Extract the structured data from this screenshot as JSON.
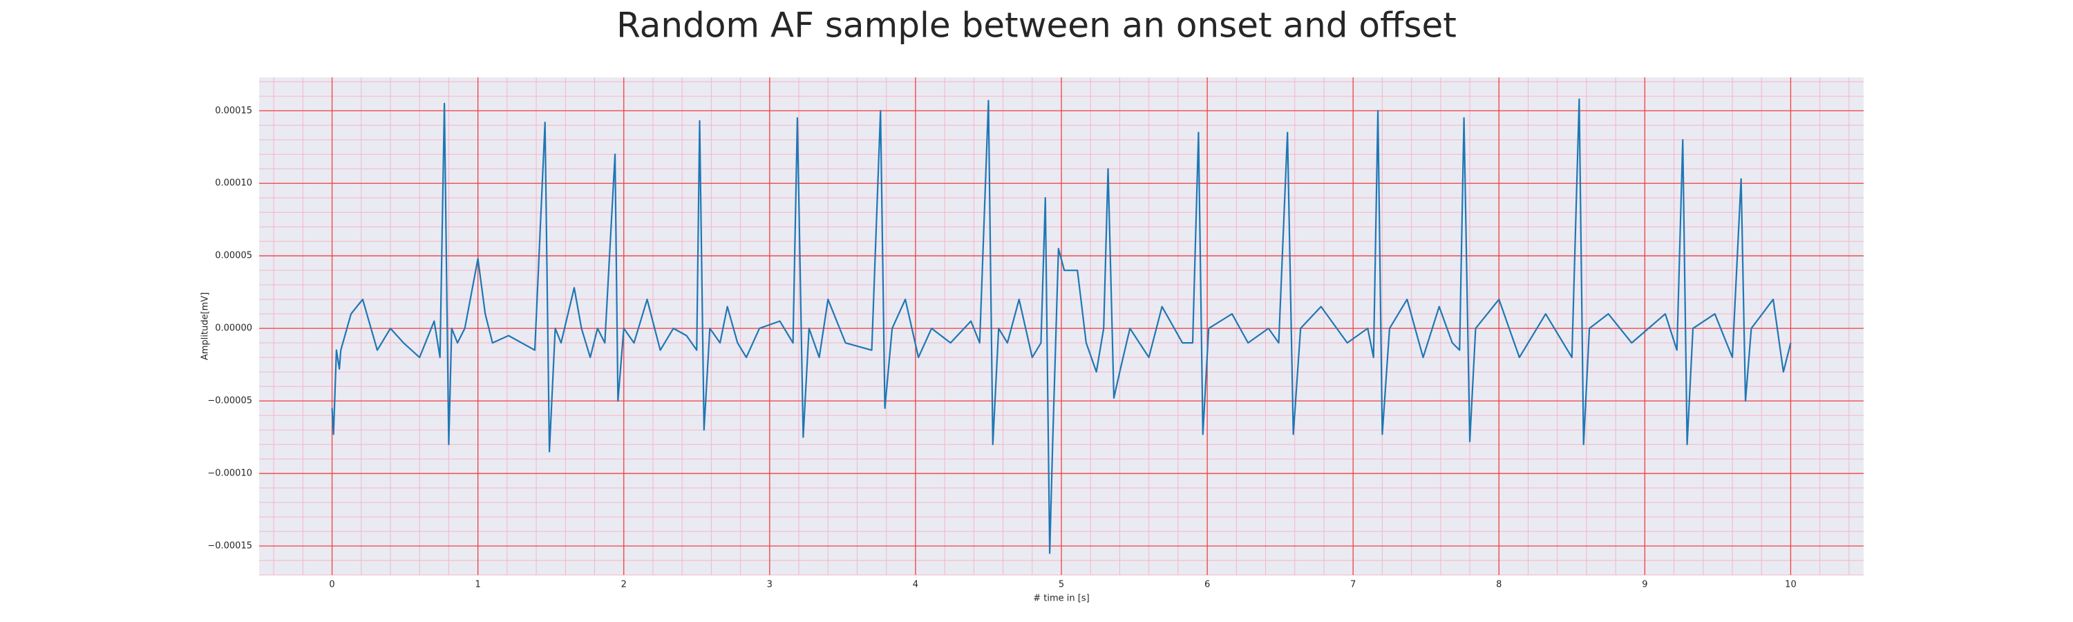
{
  "chart_data": {
    "type": "line",
    "title": "Random AF sample between an onset and offset",
    "xlabel": "# time in [s]",
    "ylabel": "Amplitude[mV]",
    "x": [
      0.0,
      0.01,
      0.03,
      0.05,
      0.06,
      0.13,
      0.21,
      0.31,
      0.4,
      0.49,
      0.6,
      0.7,
      0.74,
      0.77,
      0.8,
      0.82,
      0.86,
      0.91,
      1.0,
      1.05,
      1.1,
      1.21,
      1.3,
      1.39,
      1.46,
      1.49,
      1.53,
      1.57,
      1.66,
      1.71,
      1.77,
      1.82,
      1.87,
      1.94,
      1.96,
      2.0,
      2.07,
      2.16,
      2.25,
      2.34,
      2.43,
      2.5,
      2.52,
      2.55,
      2.59,
      2.66,
      2.71,
      2.78,
      2.84,
      2.93,
      3.07,
      3.16,
      3.19,
      3.23,
      3.27,
      3.34,
      3.4,
      3.52,
      3.7,
      3.76,
      3.79,
      3.84,
      3.93,
      4.02,
      4.11,
      4.24,
      4.38,
      4.44,
      4.5,
      4.53,
      4.57,
      4.63,
      4.71,
      4.8,
      4.86,
      4.89,
      4.92,
      4.94,
      4.98,
      5.02,
      5.11,
      5.17,
      5.24,
      5.29,
      5.32,
      5.36,
      5.4,
      5.47,
      5.6,
      5.69,
      5.83,
      5.9,
      5.94,
      5.97,
      6.01,
      6.17,
      6.28,
      6.42,
      6.49,
      6.55,
      6.59,
      6.64,
      6.78,
      6.96,
      7.1,
      7.14,
      7.17,
      7.2,
      7.25,
      7.37,
      7.48,
      7.59,
      7.68,
      7.73,
      7.76,
      7.8,
      7.84,
      8.0,
      8.14,
      8.32,
      8.5,
      8.55,
      8.58,
      8.62,
      8.75,
      8.91,
      9.14,
      9.22,
      9.26,
      9.29,
      9.33,
      9.48,
      9.6,
      9.66,
      9.69,
      9.73,
      9.88,
      9.95,
      10.0
    ],
    "series": [
      {
        "color": "#1f77b4",
        "values": [
          -5.5e-05,
          -7.3e-05,
          -1.5e-05,
          -2.8e-05,
          -1.5e-05,
          1e-05,
          2e-05,
          -1.5e-05,
          0,
          -1e-05,
          -2e-05,
          5e-06,
          -2e-05,
          0.000155,
          -8e-05,
          0,
          -1e-05,
          0,
          4.8e-05,
          1e-05,
          -1e-05,
          -5e-06,
          -1e-05,
          -1.5e-05,
          0.000142,
          -8.5e-05,
          0,
          -1e-05,
          2.8e-05,
          0,
          -2e-05,
          0,
          -1e-05,
          0.00012,
          -5e-05,
          0,
          -1e-05,
          2e-05,
          -1.5e-05,
          0,
          -5e-06,
          -1.5e-05,
          0.000143,
          -7e-05,
          0,
          -1e-05,
          1.5e-05,
          -1e-05,
          -2e-05,
          0,
          5e-06,
          -1e-05,
          0.000145,
          -7.5e-05,
          0,
          -2e-05,
          2e-05,
          -1e-05,
          -1.5e-05,
          0.00015,
          -5.5e-05,
          0,
          2e-05,
          -2e-05,
          0,
          -1e-05,
          5e-06,
          -1e-05,
          0.000157,
          -8e-05,
          0,
          -1e-05,
          2e-05,
          -2e-05,
          -1e-05,
          9e-05,
          -0.000155,
          -8e-05,
          5.5e-05,
          4e-05,
          4e-05,
          -1e-05,
          -3e-05,
          0,
          0.00011,
          -4.8e-05,
          -3e-05,
          0,
          -2e-05,
          1.5e-05,
          -1e-05,
          -1e-05,
          0.000135,
          -7.3e-05,
          0,
          1e-05,
          -1e-05,
          0,
          -1e-05,
          0.000135,
          -7.3e-05,
          0,
          1.5e-05,
          -1e-05,
          0,
          -2e-05,
          0.00015,
          -7.3e-05,
          0,
          2e-05,
          -2e-05,
          1.5e-05,
          -1e-05,
          -1.5e-05,
          0.000145,
          -7.8e-05,
          0,
          2e-05,
          -2e-05,
          1e-05,
          -2e-05,
          0.000158,
          -8e-05,
          0,
          1e-05,
          -1e-05,
          1e-05,
          -1.5e-05,
          0.00013,
          -8e-05,
          0,
          1e-05,
          -2e-05,
          0.000103,
          -5e-05,
          0,
          2e-05,
          -3e-05,
          -1e-05
        ]
      }
    ],
    "xlim": [
      -0.5,
      10.5
    ],
    "xticks": [
      0,
      1,
      2,
      3,
      4,
      5,
      6,
      7,
      8,
      9,
      10
    ],
    "ylim": [
      -0.00017,
      0.000173
    ],
    "yticks": [
      {
        "value": -0.00015,
        "label": "−0.00015"
      },
      {
        "value": -0.0001,
        "label": "−0.00010"
      },
      {
        "value": -5e-05,
        "label": "−0.00005"
      },
      {
        "value": 0,
        "label": "0.00000"
      },
      {
        "value": 5e-05,
        "label": "0.00005"
      },
      {
        "value": 0.0001,
        "label": "0.00010"
      },
      {
        "value": 0.00015,
        "label": "0.00015"
      }
    ],
    "grid": true,
    "minor_grid": true
  }
}
